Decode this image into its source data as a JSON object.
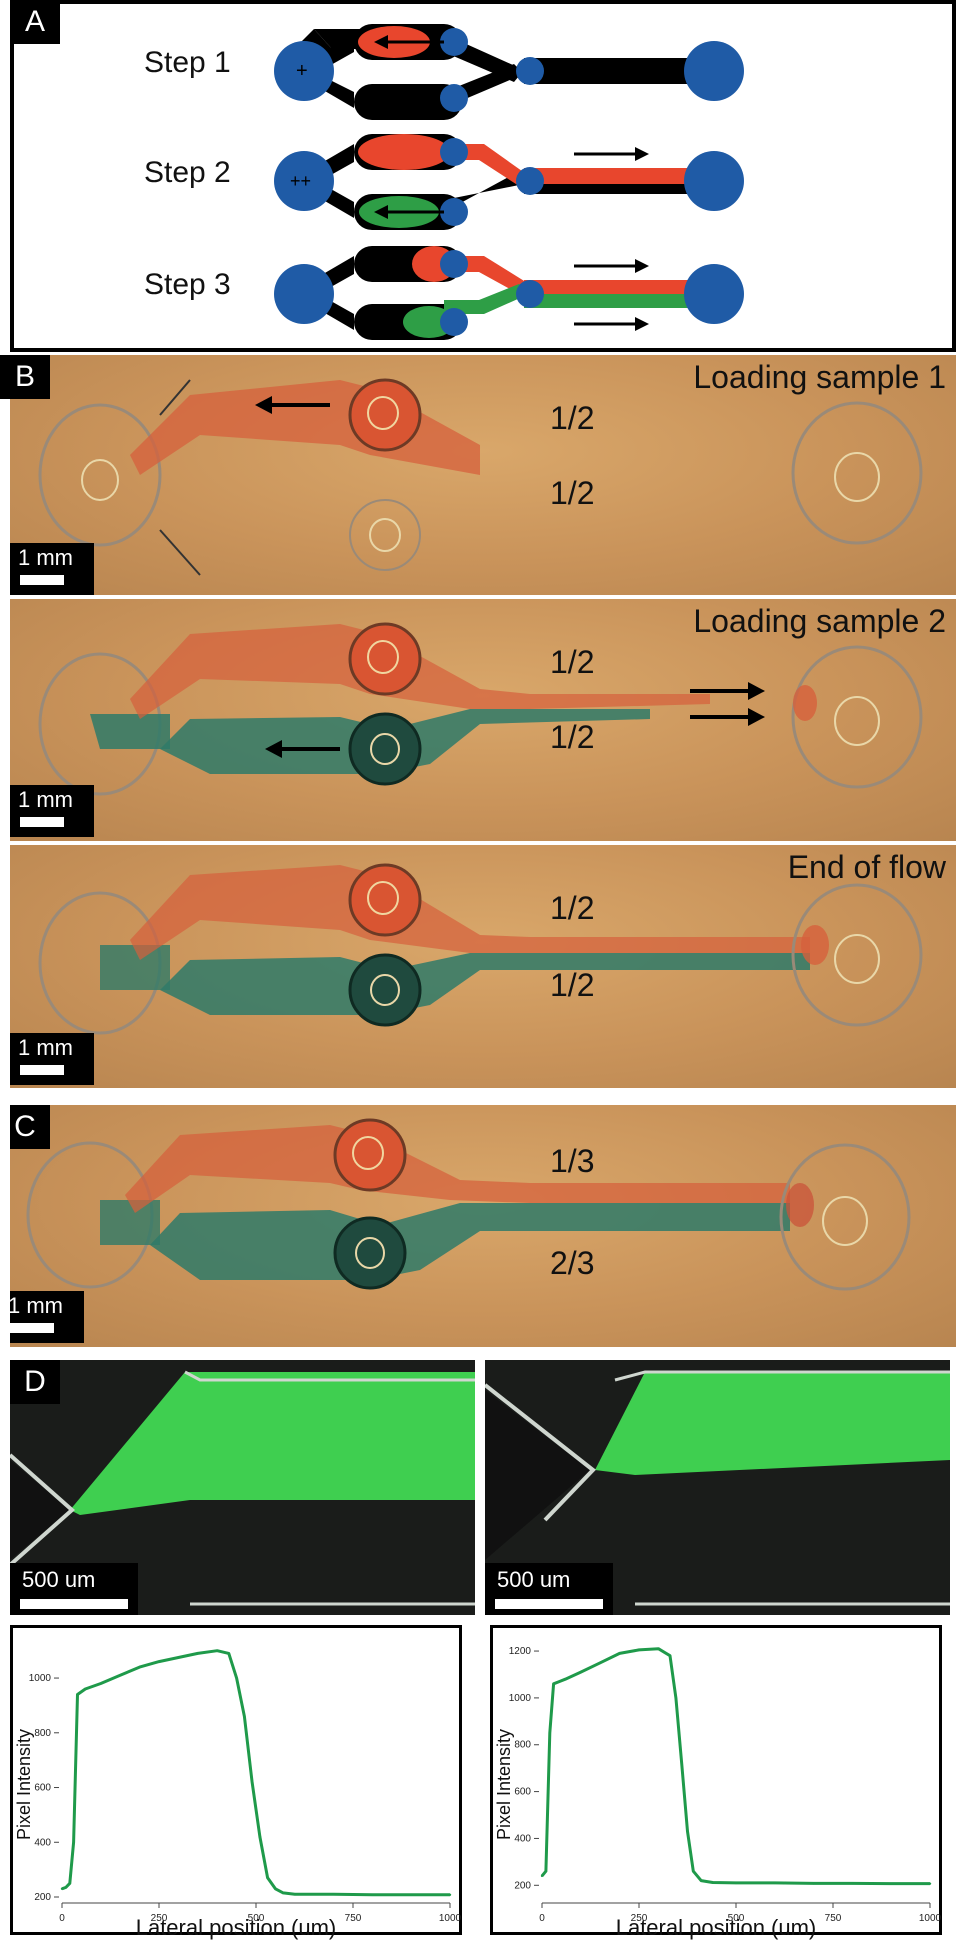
{
  "panels": {
    "a": {
      "letter": "A",
      "steps": [
        {
          "label": "Step 1",
          "reservoir_mark": "+"
        },
        {
          "label": "Step 2",
          "reservoir_mark": "++"
        },
        {
          "label": "Step 3",
          "reservoir_mark": ""
        }
      ]
    },
    "b": {
      "letter": "B",
      "rows": [
        {
          "caption": "Loading sample 1",
          "top_fraction": "1/2",
          "bottom_fraction": "1/2",
          "scale": "1 mm"
        },
        {
          "caption": "Loading sample 2",
          "top_fraction": "1/2",
          "bottom_fraction": "1/2",
          "scale": "1 mm"
        },
        {
          "caption": "End of flow",
          "top_fraction": "1/2",
          "bottom_fraction": "1/2",
          "scale": "1 mm"
        }
      ]
    },
    "c": {
      "letter": "C",
      "top_fraction": "1/3",
      "bottom_fraction": "2/3",
      "scale": "1 mm"
    },
    "d": {
      "letter": "D",
      "micro_scale_left": "500 um",
      "micro_scale_right": "500 um"
    }
  },
  "colors": {
    "reservoir_blue": "#1f5ba6",
    "channel_black": "#000000",
    "sample_red": "#e8462d",
    "sample_green": "#2e9e46",
    "photo_tan": "#cf9a5c",
    "dye_red": "#d6603c",
    "dye_teal": "#2f7a68",
    "plot_green": "#1f9a4a"
  },
  "chart_data": [
    {
      "type": "line",
      "title": "",
      "xlabel": "Lateral position (um)",
      "ylabel": "Pixel Intensity",
      "xlim": [
        0,
        1000
      ],
      "ylim": [
        200,
        1150
      ],
      "xticks": [
        "0",
        "250",
        "500",
        "750",
        "1000"
      ],
      "yticks": [
        "200",
        "400",
        "600",
        "800",
        "1000"
      ],
      "series": [
        {
          "x": [
            0,
            10,
            20,
            30,
            40,
            60,
            100,
            150,
            200,
            250,
            300,
            350,
            400,
            430,
            450,
            470,
            490,
            510,
            530,
            550,
            570,
            600,
            700,
            800,
            900,
            1000
          ],
          "y": [
            230,
            235,
            250,
            400,
            940,
            960,
            980,
            1010,
            1040,
            1060,
            1075,
            1090,
            1100,
            1090,
            1000,
            860,
            620,
            420,
            270,
            230,
            215,
            210,
            210,
            208,
            208,
            208
          ]
        }
      ]
    },
    {
      "type": "line",
      "title": "",
      "xlabel": "Lateral position (um)",
      "ylabel": "Pixel Intensity",
      "xlim": [
        0,
        1000
      ],
      "ylim": [
        150,
        1260
      ],
      "xticks": [
        "0",
        "250",
        "500",
        "750",
        "1000"
      ],
      "yticks": [
        "200",
        "400",
        "600",
        "800",
        "1000",
        "1200"
      ],
      "series": [
        {
          "x": [
            0,
            10,
            20,
            30,
            45,
            60,
            100,
            150,
            200,
            250,
            300,
            330,
            345,
            360,
            375,
            390,
            410,
            440,
            500,
            600,
            700,
            800,
            900,
            1000
          ],
          "y": [
            240,
            260,
            850,
            1060,
            1070,
            1080,
            1110,
            1150,
            1190,
            1205,
            1210,
            1180,
            1000,
            720,
            430,
            260,
            220,
            212,
            210,
            210,
            208,
            208,
            207,
            207
          ]
        }
      ]
    }
  ]
}
